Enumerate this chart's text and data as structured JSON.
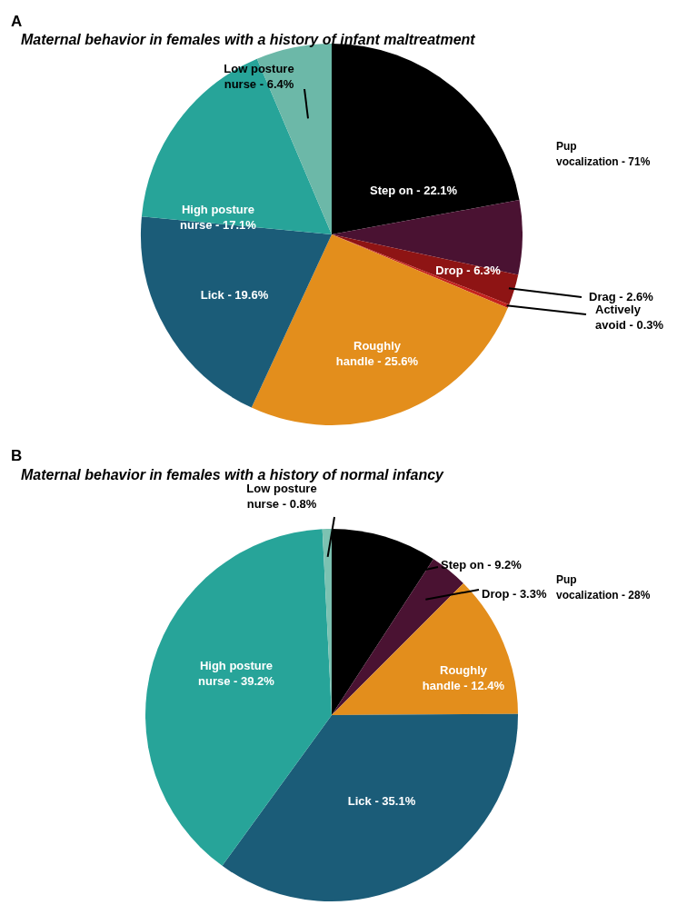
{
  "chart_data": [
    {
      "type": "pie",
      "title": "Maternal behavior in females with a history of infant maltreatment",
      "annotations": [
        "A",
        "Pup vocalization - 71%"
      ],
      "categories": [
        "Step on",
        "Drop",
        "Drag",
        "Actively avoid",
        "Roughly handle",
        "Lick",
        "High posture nurse",
        "Low posture nurse"
      ],
      "values": [
        22.1,
        6.3,
        2.6,
        0.3,
        25.6,
        19.6,
        17.1,
        6.4
      ],
      "colors": [
        "#000000",
        "#4a1232",
        "#8e1414",
        "#c4231e",
        "#e38e1c",
        "#1b5c78",
        "#27a499",
        "#6cb8a8"
      ],
      "value_labels": [
        "22.1%",
        "6.3%",
        "2.6%",
        "0.3%",
        "25.6%",
        "19.6%",
        "17.1%",
        "6.4%"
      ]
    },
    {
      "type": "pie",
      "title": "Maternal behavior in females with a history of normal infancy",
      "annotations": [
        "B",
        "Pup vocalization - 28%"
      ],
      "categories": [
        "Step on",
        "Drop",
        "Roughly handle",
        "Lick",
        "High posture nurse",
        "Low posture nurse"
      ],
      "values": [
        9.2,
        3.3,
        12.4,
        35.1,
        39.2,
        0.8
      ],
      "colors": [
        "#000000",
        "#4a1232",
        "#e38e1c",
        "#1b5c78",
        "#27a499",
        "#7cc2b2"
      ],
      "value_labels": [
        "9.2%",
        "3.3%",
        "12.4%",
        "35.1%",
        "39.2%",
        "0.8%"
      ]
    }
  ]
}
